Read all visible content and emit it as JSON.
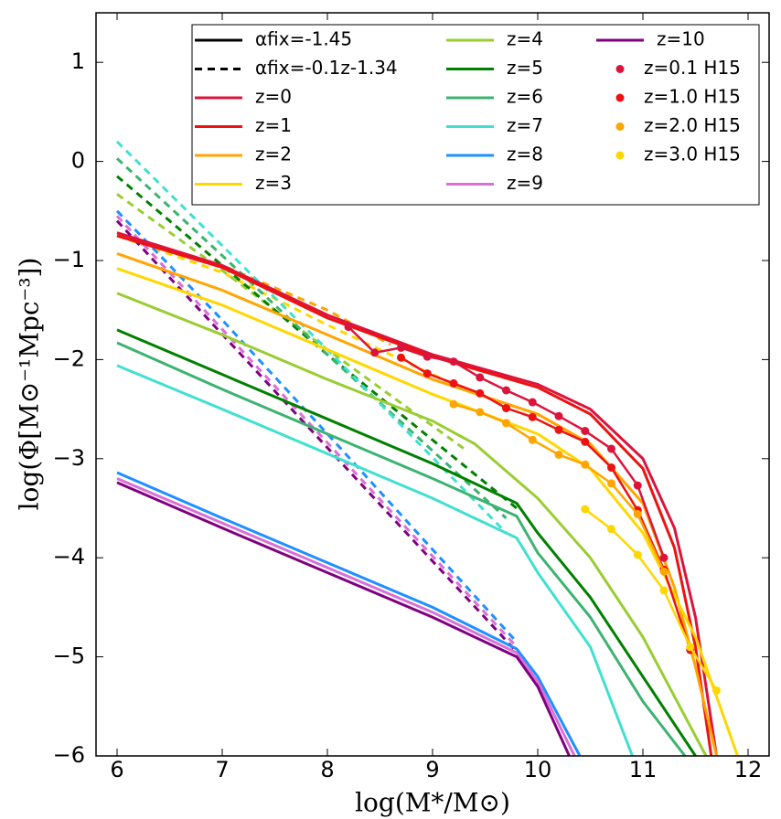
{
  "chart_data": {
    "type": "line",
    "xlabel": "log(M*/M⊙)",
    "ylabel": "log(Φ[M⊙⁻¹Mpc⁻³])",
    "xlim": [
      5.8,
      12.2
    ],
    "ylim": [
      -6,
      1.5
    ],
    "xticks": [
      6,
      7,
      8,
      9,
      10,
      11,
      12
    ],
    "yticks": [
      {
        "value": -6,
        "label": "−6"
      },
      {
        "value": -5,
        "label": "−5"
      },
      {
        "value": -4,
        "label": "−4"
      },
      {
        "value": -3,
        "label": "−3"
      },
      {
        "value": -2,
        "label": "−2"
      },
      {
        "value": -1,
        "label": "−1"
      },
      0,
      1
    ],
    "legend_styles": [
      {
        "name": "αfix=-1.45",
        "color": "#000000",
        "style": "solid"
      },
      {
        "name": "αfix=-0.1z-1.34",
        "color": "#000000",
        "style": "dashed"
      }
    ],
    "series": [
      {
        "name": "z=0",
        "color": "#dc143c",
        "x": [
          6,
          7,
          8,
          9,
          10,
          10.5,
          11,
          11.3,
          11.5,
          11.7
        ],
        "values": [
          -0.72,
          -1.05,
          -1.55,
          -1.95,
          -2.25,
          -2.5,
          -3.0,
          -3.7,
          -4.6,
          -6
        ]
      },
      {
        "name": "z=1",
        "color": "#ee1111",
        "x": [
          6,
          7,
          8,
          9,
          10,
          10.5,
          11,
          11.3,
          11.5,
          11.65
        ],
        "values": [
          -0.75,
          -1.07,
          -1.58,
          -1.97,
          -2.28,
          -2.55,
          -3.1,
          -3.9,
          -4.9,
          -6
        ]
      },
      {
        "name": "z=2",
        "color": "#ffa500",
        "x": [
          6,
          7,
          8,
          9,
          10,
          10.5,
          11,
          11.3,
          11.5,
          11.7
        ],
        "values": [
          -0.93,
          -1.3,
          -1.75,
          -2.2,
          -2.55,
          -2.85,
          -3.45,
          -4.3,
          -5.1,
          -6
        ]
      },
      {
        "name": "z=3",
        "color": "#ffd700",
        "x": [
          6,
          7,
          8,
          9,
          10,
          10.5,
          11,
          11.5,
          11.9
        ],
        "values": [
          -1.08,
          -1.45,
          -1.9,
          -2.35,
          -2.75,
          -3.1,
          -3.75,
          -4.8,
          -6
        ]
      },
      {
        "name": "z=4",
        "color": "#9acd32",
        "x": [
          6,
          7,
          8,
          9,
          9.4,
          10,
          10.5,
          11,
          11.6
        ],
        "values": [
          -1.33,
          -1.75,
          -2.2,
          -2.62,
          -2.85,
          -3.4,
          -4.0,
          -4.8,
          -6
        ]
      },
      {
        "name": "z=5",
        "color": "#008000",
        "x": [
          6,
          7,
          8,
          9,
          9.8,
          10,
          10.5,
          11,
          11.5
        ],
        "values": [
          -1.7,
          -2.15,
          -2.6,
          -3.05,
          -3.45,
          -3.75,
          -4.4,
          -5.2,
          -6
        ]
      },
      {
        "name": "z=6",
        "color": "#3cb371",
        "x": [
          6,
          7,
          8,
          9,
          9.8,
          10,
          10.5,
          11,
          11.4
        ],
        "values": [
          -1.83,
          -2.3,
          -2.75,
          -3.2,
          -3.58,
          -3.95,
          -4.6,
          -5.45,
          -6
        ]
      },
      {
        "name": "z=7",
        "color": "#40e0d0",
        "x": [
          6,
          7,
          8,
          9,
          9.8,
          10,
          10.5,
          10.9
        ],
        "values": [
          -2.06,
          -2.5,
          -2.95,
          -3.4,
          -3.8,
          -4.15,
          -4.9,
          -6
        ]
      },
      {
        "name": "z=8",
        "color": "#1e90ff",
        "x": [
          6,
          7,
          8,
          9,
          9.8,
          10,
          10.4
        ],
        "values": [
          -3.14,
          -3.6,
          -4.05,
          -4.5,
          -4.92,
          -5.2,
          -6
        ]
      },
      {
        "name": "z=9",
        "color": "#da70d6",
        "x": [
          6,
          7,
          8,
          9,
          9.8,
          10,
          10.35
        ],
        "values": [
          -3.2,
          -3.65,
          -4.1,
          -4.55,
          -4.96,
          -5.25,
          -6
        ]
      },
      {
        "name": "z=10",
        "color": "#800080",
        "x": [
          6,
          7,
          8,
          9,
          9.8,
          10,
          10.3
        ],
        "values": [
          -3.24,
          -3.7,
          -4.15,
          -4.6,
          -5.0,
          -5.3,
          -6
        ]
      }
    ],
    "dashed_series": [
      {
        "color": "#ffa500",
        "x": [
          6,
          7,
          8,
          8.6
        ],
        "values": [
          -0.72,
          -1.05,
          -1.5,
          -1.85
        ]
      },
      {
        "color": "#ffd700",
        "x": [
          6,
          7,
          8,
          9.2
        ],
        "values": [
          -0.75,
          -1.12,
          -1.65,
          -2.25
        ]
      },
      {
        "color": "#9acd32",
        "x": [
          6,
          7,
          8,
          9.3
        ],
        "values": [
          -0.33,
          -1.1,
          -1.9,
          -2.9
        ]
      },
      {
        "color": "#008000",
        "x": [
          6,
          7,
          8,
          9.8
        ],
        "values": [
          -0.15,
          -1.05,
          -1.95,
          -3.5
        ]
      },
      {
        "color": "#3cb371",
        "x": [
          6,
          7,
          8,
          9.7
        ],
        "values": [
          0.03,
          -0.95,
          -1.95,
          -3.6
        ]
      },
      {
        "color": "#40e0d0",
        "x": [
          6,
          7,
          8,
          9.7
        ],
        "values": [
          0.2,
          -0.85,
          -1.9,
          -3.75
        ]
      },
      {
        "color": "#1e90ff",
        "x": [
          6,
          7,
          8,
          9.8
        ],
        "values": [
          -0.5,
          -1.6,
          -2.75,
          -4.85
        ]
      },
      {
        "color": "#da70d6",
        "x": [
          6,
          9.8
        ],
        "values": [
          -0.55,
          -4.9
        ]
      },
      {
        "color": "#800080",
        "x": [
          6,
          9.8
        ],
        "values": [
          -0.6,
          -4.95
        ]
      }
    ],
    "point_series": [
      {
        "name": "z=0.1 H15",
        "color": "#dc143c",
        "x": [
          8.2,
          8.45,
          8.7,
          8.95,
          9.2,
          9.45,
          9.7,
          9.95,
          10.2,
          10.45,
          10.7,
          10.95,
          11.2
        ],
        "values": [
          -1.67,
          -1.93,
          -1.88,
          -1.97,
          -2.02,
          -2.18,
          -2.31,
          -2.43,
          -2.57,
          -2.72,
          -2.9,
          -3.27,
          -4.0
        ]
      },
      {
        "name": "z=1.0 H15",
        "color": "#ee1111",
        "x": [
          8.7,
          8.95,
          9.2,
          9.45,
          9.7,
          9.95,
          10.2,
          10.45,
          10.7,
          10.95,
          11.2,
          11.45
        ],
        "values": [
          -1.98,
          -2.14,
          -2.24,
          -2.34,
          -2.49,
          -2.58,
          -2.71,
          -2.83,
          -3.09,
          -3.52,
          -4.12,
          -4.93
        ]
      },
      {
        "name": "z=2.0 H15",
        "color": "#ffa500",
        "x": [
          9.2,
          9.45,
          9.7,
          9.95,
          10.2,
          10.45,
          10.7,
          10.95,
          11.2
        ],
        "values": [
          -2.45,
          -2.53,
          -2.64,
          -2.81,
          -2.96,
          -3.06,
          -3.25,
          -3.56,
          -4.14
        ]
      },
      {
        "name": "z=3.0 H15",
        "color": "#ffd700",
        "x": [
          10.45,
          10.7,
          10.95,
          11.2,
          11.45,
          11.7
        ],
        "values": [
          -3.51,
          -3.71,
          -3.97,
          -4.33,
          -4.9,
          -5.34
        ]
      }
    ]
  }
}
